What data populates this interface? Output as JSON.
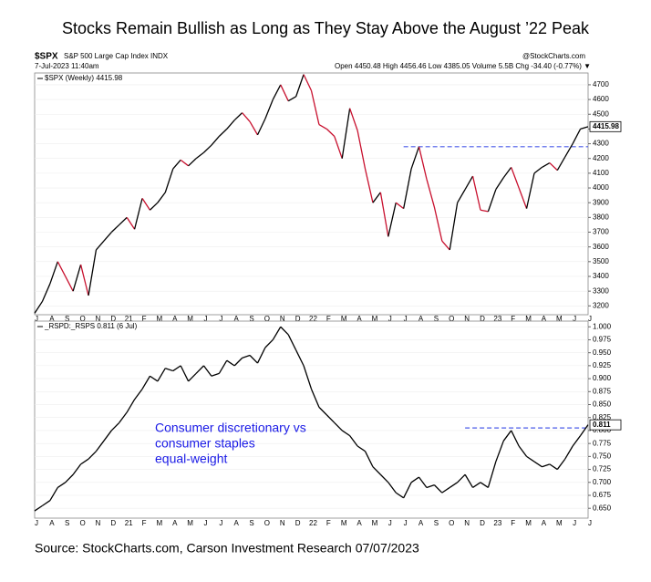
{
  "title": "Stocks Remain Bullish as Long as They Stay Above the August ’22 Peak",
  "source": "Source: StockCharts.com, Carson Investment Research 07/07/2023",
  "chart_data": [
    {
      "type": "line",
      "symbol": "$SPX",
      "subtitle": "S&P 500 Large Cap Index INDX",
      "date": "7-Jul-2023 11:40am",
      "quote": "Open 4450.48  High 4456.46  Low 4385.05  Volume 5.5B  Chg -34.40 (-0.77%) ▼",
      "watermark": "@StockCharts.com",
      "legend": "$SPX (Weekly) 4415.98",
      "up_color": "#000000",
      "down_color": "#c8102e",
      "x": [
        "J",
        null,
        "A",
        null,
        "S",
        null,
        "O",
        null,
        "N",
        null,
        "D",
        null,
        "21",
        null,
        "F",
        null,
        "M",
        null,
        "A",
        null,
        "M",
        null,
        "J",
        null,
        "J",
        null,
        "A",
        null,
        "S",
        null,
        "O",
        null,
        "N",
        null,
        "D",
        null,
        "22",
        null,
        "F",
        null,
        "M",
        null,
        "A",
        null,
        "M",
        null,
        "J",
        null,
        "J",
        null,
        "A",
        null,
        "S",
        null,
        "O",
        null,
        "N",
        null,
        "D",
        null,
        "23",
        null,
        "F",
        null,
        "M",
        null,
        "A",
        null,
        "M",
        null,
        "J",
        null,
        "J"
      ],
      "series": [
        {
          "name": "$SPX",
          "values": [
            3150,
            3230,
            3350,
            3500,
            3400,
            3300,
            3480,
            3270,
            3580,
            3640,
            3700,
            3750,
            3800,
            3720,
            3930,
            3850,
            3900,
            3970,
            4130,
            4190,
            4150,
            4200,
            4240,
            4290,
            4350,
            4400,
            4460,
            4510,
            4450,
            4360,
            4470,
            4600,
            4700,
            4590,
            4620,
            4770,
            4660,
            4430,
            4400,
            4350,
            4200,
            4540,
            4390,
            4130,
            3900,
            3970,
            3670,
            3900,
            3860,
            4130,
            4280,
            4060,
            3870,
            3640,
            3580,
            3900,
            3990,
            4080,
            3850,
            3840,
            3990,
            4070,
            4140,
            4000,
            3860,
            4100,
            4140,
            4170,
            4120,
            4210,
            4300,
            4400,
            4415.98
          ]
        }
      ],
      "reference_line": {
        "value": 4280,
        "x_from": 48,
        "color": "#4a5ae8"
      },
      "ylim": [
        3140,
        4780
      ],
      "yticks": [
        3200,
        3300,
        3400,
        3500,
        3600,
        3700,
        3800,
        3900,
        4000,
        4100,
        4200,
        4300,
        4400,
        4500,
        4600,
        4700
      ]
    },
    {
      "type": "line",
      "legend": "_RSPD:_RSPS 0.811 (6 Jul)",
      "annotation": [
        "Consumer discretionary vs",
        "consumer staples",
        "equal-weight"
      ],
      "annotation_color": "#1a1ae6",
      "x": [
        "J",
        null,
        "A",
        null,
        "S",
        null,
        "O",
        null,
        "N",
        null,
        "D",
        null,
        "21",
        null,
        "F",
        null,
        "M",
        null,
        "A",
        null,
        "M",
        null,
        "J",
        null,
        "J",
        null,
        "A",
        null,
        "S",
        null,
        "O",
        null,
        "N",
        null,
        "D",
        null,
        "22",
        null,
        "F",
        null,
        "M",
        null,
        "A",
        null,
        "M",
        null,
        "J",
        null,
        "J",
        null,
        "A",
        null,
        "S",
        null,
        "O",
        null,
        "N",
        null,
        "D",
        null,
        "23",
        null,
        "F",
        null,
        "M",
        null,
        "A",
        null,
        "M",
        null,
        "J",
        null,
        "J"
      ],
      "series": [
        {
          "name": "_RSPD:_RSPS",
          "color": "#000000",
          "values": [
            0.645,
            0.655,
            0.665,
            0.69,
            0.7,
            0.715,
            0.735,
            0.745,
            0.76,
            0.78,
            0.8,
            0.815,
            0.835,
            0.86,
            0.88,
            0.905,
            0.895,
            0.92,
            0.915,
            0.925,
            0.895,
            0.91,
            0.925,
            0.905,
            0.91,
            0.935,
            0.925,
            0.94,
            0.945,
            0.93,
            0.96,
            0.975,
            1.0,
            0.985,
            0.955,
            0.925,
            0.88,
            0.845,
            0.83,
            0.815,
            0.8,
            0.79,
            0.77,
            0.76,
            0.73,
            0.715,
            0.7,
            0.68,
            0.67,
            0.7,
            0.71,
            0.69,
            0.695,
            0.68,
            0.69,
            0.7,
            0.715,
            0.69,
            0.7,
            0.69,
            0.74,
            0.78,
            0.8,
            0.77,
            0.75,
            0.74,
            0.73,
            0.735,
            0.725,
            0.745,
            0.77,
            0.79,
            0.811
          ]
        }
      ],
      "reference_line": {
        "value": 0.805,
        "x_from": 56,
        "color": "#4a5ae8"
      },
      "ylim": [
        0.631,
        1.011
      ],
      "yticks": [
        {
          "value": 0.65,
          "label": "0.650"
        },
        {
          "value": 0.675,
          "label": "0.675"
        },
        {
          "value": 0.7,
          "label": "0.700"
        },
        {
          "value": 0.725,
          "label": "0.725"
        },
        {
          "value": 0.75,
          "label": "0.750"
        },
        {
          "value": 0.775,
          "label": "0.775"
        },
        {
          "value": 0.8,
          "label": "0.800"
        },
        {
          "value": 0.825,
          "label": "0.825"
        },
        {
          "value": 0.85,
          "label": "0.850"
        },
        {
          "value": 0.875,
          "label": "0.875"
        },
        {
          "value": 0.9,
          "label": "0.900"
        },
        {
          "value": 0.925,
          "label": "0.925"
        },
        {
          "value": 0.95,
          "label": "0.950"
        },
        {
          "value": 0.975,
          "label": "0.975"
        },
        {
          "value": 1.0,
          "label": "1.000"
        }
      ]
    }
  ]
}
